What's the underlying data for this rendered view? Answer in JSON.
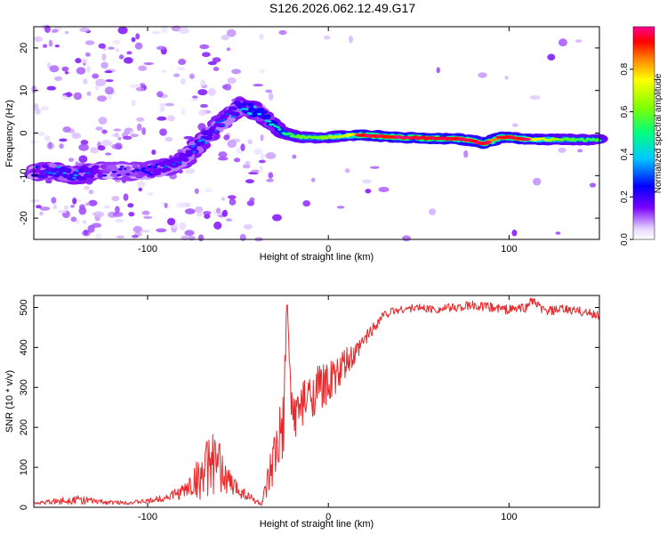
{
  "title": "S126.2026.062.12.49.G17",
  "chart_data": [
    {
      "type": "heatmap",
      "xlabel": "Height of straight line (km)",
      "ylabel": "Frequency (Hz)",
      "xlim": [
        -163,
        150
      ],
      "ylim": [
        -25,
        25
      ],
      "x_ticks": [
        -100,
        0,
        100
      ],
      "x_tick_labels": [
        "-100",
        "0",
        "100"
      ],
      "y_ticks": [
        -20,
        -10,
        0,
        10,
        20
      ],
      "y_tick_labels": [
        "-20",
        "-10",
        "0",
        "10",
        "20"
      ],
      "ridge": {
        "x": [
          -163,
          -150,
          -140,
          -130,
          -120,
          -110,
          -100,
          -90,
          -80,
          -70,
          -60,
          -55,
          -50,
          -45,
          -40,
          -35,
          -30,
          -25,
          -20,
          -15,
          -10,
          -5,
          0,
          10,
          20,
          40,
          60,
          70,
          80,
          85,
          90,
          95,
          100,
          110,
          120,
          130,
          140,
          150
        ],
        "y": [
          -9,
          -9,
          -10,
          -9,
          -9,
          -9,
          -9,
          -8,
          -6,
          -2,
          2,
          4,
          6,
          6,
          5,
          4,
          2,
          0,
          -0.5,
          -1,
          -1,
          -1.2,
          -1,
          -0.6,
          -0.5,
          -1,
          -1.3,
          -1.3,
          -1.8,
          -2.5,
          -2,
          -1,
          -1,
          -1.5,
          -1.5,
          -1.5,
          -1.6,
          -1.6
        ],
        "amp": [
          0.25,
          0.35,
          0.35,
          0.3,
          0.2,
          0.2,
          0.25,
          0.3,
          0.3,
          0.35,
          0.3,
          0.3,
          0.35,
          0.4,
          0.45,
          0.4,
          0.45,
          0.5,
          0.55,
          0.6,
          0.6,
          0.6,
          0.65,
          0.7,
          0.9,
          0.9,
          0.95,
          0.9,
          0.85,
          0.95,
          0.85,
          0.85,
          0.9,
          0.8,
          0.7,
          0.6,
          0.55,
          0.55
        ]
      },
      "colorbar": {
        "label": "Normalized spectral amplitude",
        "range": [
          0,
          1
        ],
        "ticks": [
          0,
          0.2,
          0.4,
          0.6,
          0.8
        ],
        "tick_labels": [
          "0.0",
          "0.2",
          "0.4",
          "0.6",
          "0.8"
        ]
      }
    },
    {
      "type": "line",
      "xlabel": "Height of straight line (km)",
      "ylabel": "SNR (10 * v/v)",
      "xlim": [
        -163,
        150
      ],
      "ylim": [
        0,
        530
      ],
      "x_ticks": [
        -100,
        0,
        100
      ],
      "x_tick_labels": [
        "-100",
        "0",
        "100"
      ],
      "y_ticks": [
        0,
        100,
        200,
        300,
        400,
        500
      ],
      "y_tick_labels": [
        "0",
        "100",
        "200",
        "300",
        "400",
        "500"
      ],
      "series": [
        {
          "name": "SNR",
          "color": "#e8282a",
          "x": [
            -163,
            -150,
            -140,
            -130,
            -120,
            -110,
            -100,
            -90,
            -80,
            -75,
            -70,
            -65,
            -60,
            -55,
            -50,
            -45,
            -40,
            -37,
            -35,
            -30,
            -25,
            -23,
            -20,
            -15,
            -10,
            -5,
            0,
            5,
            10,
            15,
            20,
            25,
            30,
            35,
            40,
            50,
            60,
            70,
            80,
            90,
            100,
            110,
            112,
            120,
            130,
            140,
            150
          ],
          "y": [
            10,
            15,
            20,
            15,
            12,
            12,
            15,
            25,
            40,
            60,
            80,
            110,
            100,
            60,
            45,
            30,
            15,
            8,
            30,
            110,
            190,
            500,
            230,
            250,
            280,
            300,
            310,
            330,
            360,
            380,
            420,
            450,
            480,
            490,
            495,
            500,
            495,
            500,
            505,
            500,
            495,
            500,
            520,
            490,
            495,
            490,
            480
          ],
          "noise": [
            3,
            8,
            12,
            8,
            5,
            5,
            6,
            10,
            20,
            40,
            60,
            80,
            60,
            40,
            20,
            15,
            8,
            5,
            30,
            80,
            100,
            40,
            60,
            60,
            60,
            60,
            50,
            50,
            40,
            30,
            20,
            15,
            12,
            10,
            10,
            10,
            10,
            12,
            12,
            12,
            12,
            12,
            10,
            12,
            12,
            12,
            12
          ]
        }
      ]
    }
  ],
  "colors": {
    "series": "#e8282a",
    "axis": "#000000"
  }
}
